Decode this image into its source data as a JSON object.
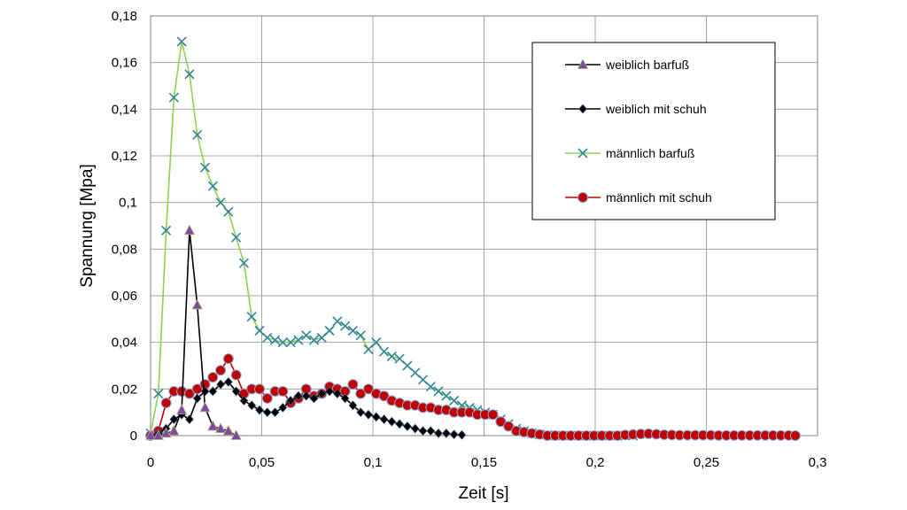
{
  "chart_data": {
    "type": "line",
    "title": "",
    "xlabel": "Zeit [s]",
    "ylabel": "Spannung [Mpa]",
    "xlim": [
      0,
      0.3
    ],
    "ylim": [
      0,
      0.18
    ],
    "x_ticks": [
      0,
      0.05,
      0.1,
      0.15,
      0.2,
      0.25,
      0.3
    ],
    "x_tick_labels": [
      "0",
      "0,05",
      "0,1",
      "0,15",
      "0,2",
      "0,25",
      "0,3"
    ],
    "y_ticks": [
      0,
      0.02,
      0.04,
      0.06,
      0.08,
      0.1,
      0.12,
      0.14,
      0.16,
      0.18
    ],
    "y_tick_labels": [
      "0",
      "0,02",
      "0,04",
      "0,06",
      "0,08",
      "0,1",
      "0,12",
      "0,14",
      "0,16",
      "0,18"
    ],
    "grid": true,
    "legend_position": "top-right",
    "series": [
      {
        "name": "weiblich barfuß",
        "marker": "triangle",
        "line_color": "#000000",
        "marker_color": "#7a4b9e",
        "x": [
          0,
          0.0035,
          0.007,
          0.0105,
          0.014,
          0.0175,
          0.021,
          0.0245,
          0.028,
          0.0315,
          0.035,
          0.0385
        ],
        "y": [
          0,
          0,
          0.001,
          0.002,
          0.011,
          0.088,
          0.056,
          0.012,
          0.004,
          0.003,
          0.002,
          0
        ]
      },
      {
        "name": "weiblich mit schuh",
        "marker": "diamond",
        "line_color": "#000000",
        "marker_color": "#000000",
        "x": [
          0,
          0.0035,
          0.007,
          0.0105,
          0.014,
          0.0175,
          0.021,
          0.0245,
          0.028,
          0.0315,
          0.035,
          0.0385,
          0.042,
          0.0455,
          0.049,
          0.0525,
          0.056,
          0.0595,
          0.063,
          0.0665,
          0.07,
          0.0735,
          0.077,
          0.0805,
          0.084,
          0.0875,
          0.091,
          0.0945,
          0.098,
          0.1015,
          0.105,
          0.1085,
          0.112,
          0.1155,
          0.119,
          0.1225,
          0.126,
          0.1295,
          0.133,
          0.1365,
          0.14
        ],
        "y": [
          0,
          0.001,
          0.003,
          0.007,
          0.009,
          0.007,
          0.016,
          0.019,
          0.019,
          0.022,
          0.023,
          0.019,
          0.015,
          0.013,
          0.011,
          0.01,
          0.01,
          0.012,
          0.015,
          0.017,
          0.017,
          0.016,
          0.018,
          0.019,
          0.018,
          0.016,
          0.013,
          0.01,
          0.009,
          0.008,
          0.007,
          0.006,
          0.005,
          0.004,
          0.003,
          0.002,
          0.002,
          0.001,
          0.001,
          0.0005,
          0.0003
        ]
      },
      {
        "name": "männlich barfuß",
        "marker": "x",
        "line_color": "#92d050",
        "marker_color": "#31859c",
        "x": [
          0,
          0.0035,
          0.007,
          0.0105,
          0.014,
          0.0175,
          0.021,
          0.0245,
          0.028,
          0.0315,
          0.035,
          0.0385,
          0.042,
          0.0455,
          0.049,
          0.0525,
          0.056,
          0.0595,
          0.063,
          0.0665,
          0.07,
          0.0735,
          0.077,
          0.0805,
          0.084,
          0.0875,
          0.091,
          0.0945,
          0.098,
          0.1015,
          0.105,
          0.1085,
          0.112,
          0.1155,
          0.119,
          0.1225,
          0.126,
          0.1295,
          0.133,
          0.1365,
          0.14,
          0.1435,
          0.147,
          0.1505,
          0.154,
          0.1575,
          0.161,
          0.1645,
          0.168,
          0.1715,
          0.175,
          0.1785,
          0.182,
          0.1855,
          0.189,
          0.1925,
          0.196,
          0.1995,
          0.203,
          0.2065,
          0.21,
          0.2135,
          0.217
        ],
        "y": [
          0.001,
          0.018,
          0.088,
          0.145,
          0.169,
          0.155,
          0.129,
          0.115,
          0.107,
          0.1,
          0.096,
          0.085,
          0.074,
          0.051,
          0.045,
          0.042,
          0.041,
          0.04,
          0.04,
          0.041,
          0.043,
          0.041,
          0.042,
          0.045,
          0.049,
          0.047,
          0.045,
          0.043,
          0.037,
          0.04,
          0.036,
          0.034,
          0.033,
          0.03,
          0.027,
          0.024,
          0.021,
          0.019,
          0.017,
          0.015,
          0.013,
          0.012,
          0.011,
          0.01,
          0.009,
          0.007,
          0.005,
          0.003,
          0.002,
          0.001,
          0.0005,
          0.0003,
          0,
          0,
          0,
          0,
          0,
          0,
          0,
          0,
          0,
          0,
          0
        ]
      },
      {
        "name": "männlich mit schuh",
        "marker": "circle",
        "line_color": "#c00000",
        "marker_color": "#c00000",
        "x": [
          0,
          0.0035,
          0.007,
          0.0105,
          0.014,
          0.0175,
          0.021,
          0.0245,
          0.028,
          0.0315,
          0.035,
          0.0385,
          0.042,
          0.0455,
          0.049,
          0.0525,
          0.056,
          0.0595,
          0.063,
          0.0665,
          0.07,
          0.0735,
          0.077,
          0.0805,
          0.084,
          0.0875,
          0.091,
          0.0945,
          0.098,
          0.1015,
          0.105,
          0.1085,
          0.112,
          0.1155,
          0.119,
          0.1225,
          0.126,
          0.1295,
          0.133,
          0.1365,
          0.14,
          0.1435,
          0.147,
          0.1505,
          0.154,
          0.1575,
          0.161,
          0.1645,
          0.168,
          0.1715,
          0.175,
          0.1785,
          0.182,
          0.1855,
          0.189,
          0.1925,
          0.196,
          0.1995,
          0.203,
          0.2065,
          0.21,
          0.2135,
          0.217,
          0.2205,
          0.224,
          0.2275,
          0.231,
          0.2345,
          0.238,
          0.2415,
          0.245,
          0.2485,
          0.252,
          0.2555,
          0.259,
          0.2625,
          0.266,
          0.2695,
          0.273,
          0.2765,
          0.28,
          0.2835,
          0.287,
          0.29
        ],
        "y": [
          0,
          0.002,
          0.014,
          0.019,
          0.019,
          0.018,
          0.02,
          0.022,
          0.025,
          0.028,
          0.033,
          0.026,
          0.018,
          0.02,
          0.02,
          0.016,
          0.019,
          0.019,
          0.014,
          0.016,
          0.02,
          0.017,
          0.018,
          0.021,
          0.02,
          0.019,
          0.022,
          0.018,
          0.02,
          0.018,
          0.017,
          0.015,
          0.014,
          0.013,
          0.013,
          0.012,
          0.012,
          0.011,
          0.011,
          0.01,
          0.01,
          0.01,
          0.009,
          0.009,
          0.009,
          0.006,
          0.004,
          0.002,
          0.0015,
          0.001,
          0.0005,
          0,
          0,
          0,
          0,
          0,
          0,
          0,
          0,
          0,
          0,
          0.0003,
          0.0005,
          0.0007,
          0.0008,
          0.0006,
          0.0004,
          0.0003,
          0.0002,
          0.0002,
          0.0002,
          0.0002,
          0.0002,
          0.0001,
          0.0001,
          0.0001,
          0.0001,
          0.0001,
          0.0001,
          0.0001,
          0.0001,
          0.0001,
          0.0001,
          0
        ]
      }
    ]
  }
}
